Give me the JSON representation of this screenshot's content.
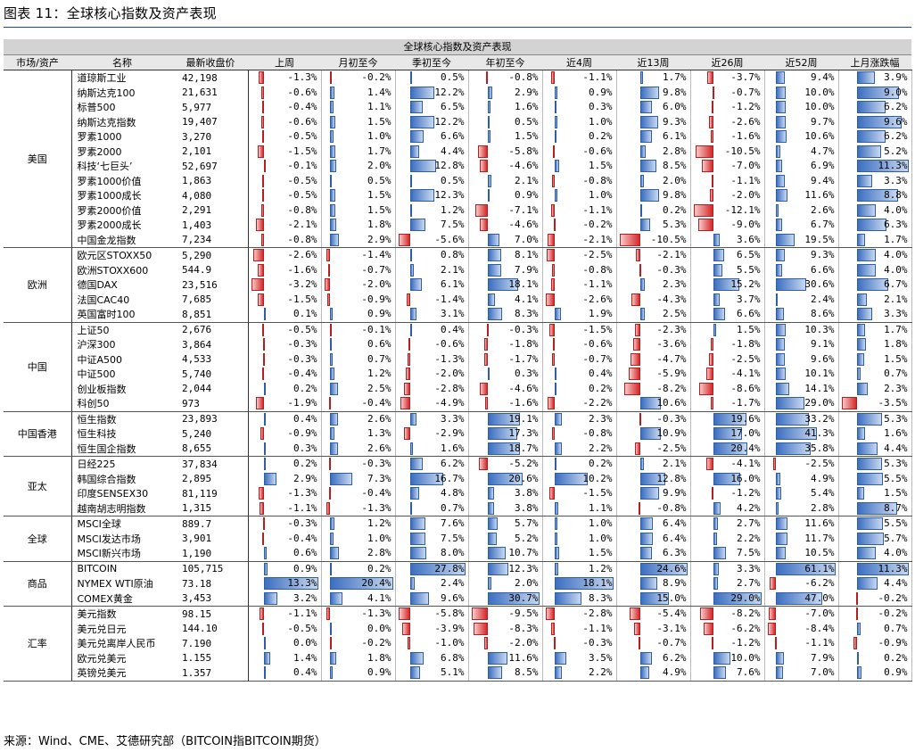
{
  "figure_title": "图表 11：全球核心指数及资产表现",
  "table_title": "全球核心指数及资产表现",
  "columns": [
    "市场/资产",
    "名称",
    "最新收盘价",
    "上周",
    "月初至今",
    "季初至今",
    "年初至今",
    "近4周",
    "近13周",
    "近26周",
    "近52周",
    "上月涨跌幅"
  ],
  "groups": [
    {
      "market": "美国",
      "rows": [
        {
          "name": "道琼斯工业",
          "price": "42,198",
          "values": [
            -1.3,
            -0.2,
            0.5,
            -0.8,
            -1.1,
            1.7,
            -3.7,
            9.4,
            3.9
          ]
        },
        {
          "name": "纳斯达克100",
          "price": "21,631",
          "values": [
            -0.6,
            1.4,
            12.2,
            2.9,
            0.9,
            9.8,
            -0.7,
            10.0,
            9.0
          ]
        },
        {
          "name": "标普500",
          "price": "5,977",
          "values": [
            -0.4,
            1.1,
            6.5,
            1.6,
            0.3,
            6.0,
            -1.2,
            10.0,
            6.2
          ]
        },
        {
          "name": "纳斯达克指数",
          "price": "19,407",
          "values": [
            -0.6,
            1.5,
            12.2,
            0.5,
            1.0,
            9.3,
            -2.6,
            9.7,
            9.6
          ]
        },
        {
          "name": "罗素1000",
          "price": "3,270",
          "values": [
            -0.5,
            1.0,
            6.6,
            1.5,
            0.2,
            6.1,
            -1.6,
            10.6,
            6.2
          ]
        },
        {
          "name": "罗素2000",
          "price": "2,101",
          "values": [
            -1.5,
            1.7,
            4.4,
            -5.8,
            -0.6,
            2.8,
            -10.5,
            4.7,
            5.2
          ]
        },
        {
          "name": "科技‘七巨头’",
          "price": "52,697",
          "values": [
            -0.1,
            2.0,
            12.8,
            -4.6,
            1.5,
            8.5,
            -7.0,
            6.9,
            11.3
          ]
        },
        {
          "name": "罗素1000价值",
          "price": "1,863",
          "values": [
            -0.5,
            0.5,
            0.5,
            2.1,
            -0.8,
            2.0,
            -1.1,
            9.4,
            3.3
          ]
        },
        {
          "name": "罗素1000成长",
          "price": "4,080",
          "values": [
            -0.5,
            1.5,
            12.3,
            0.9,
            1.0,
            9.8,
            -2.0,
            11.6,
            8.8
          ]
        },
        {
          "name": "罗素2000价值",
          "price": "2,291",
          "values": [
            -0.8,
            1.5,
            1.2,
            -7.1,
            -1.1,
            0.2,
            -12.1,
            2.6,
            4.0
          ]
        },
        {
          "name": "罗素2000成长",
          "price": "1,403",
          "values": [
            -2.1,
            1.8,
            7.5,
            -4.6,
            -0.2,
            5.3,
            -9.0,
            6.7,
            6.3
          ]
        },
        {
          "name": "中国金龙指数",
          "price": "7,234",
          "values": [
            -0.8,
            2.9,
            -5.6,
            7.0,
            -2.1,
            -10.5,
            3.6,
            19.5,
            1.7
          ]
        }
      ]
    },
    {
      "market": "欧洲",
      "rows": [
        {
          "name": "欧元区STOXX50",
          "price": "5,290",
          "values": [
            -2.6,
            -1.4,
            0.8,
            8.1,
            -2.5,
            -2.1,
            6.5,
            9.3,
            4.0
          ]
        },
        {
          "name": "欧洲STOXX600",
          "price": "544.9",
          "values": [
            -1.6,
            -0.7,
            2.1,
            7.9,
            -0.8,
            -0.3,
            5.5,
            6.6,
            4.0
          ]
        },
        {
          "name": "德国DAX",
          "price": "23,516",
          "values": [
            -3.2,
            -2.0,
            6.1,
            18.1,
            -1.1,
            2.3,
            15.2,
            30.6,
            6.7
          ]
        },
        {
          "name": "法国CAC40",
          "price": "7,685",
          "values": [
            -1.5,
            -0.9,
            -1.4,
            4.1,
            -2.6,
            -4.3,
            3.7,
            2.4,
            2.1
          ]
        },
        {
          "name": "英国富时100",
          "price": "8,851",
          "values": [
            0.1,
            0.9,
            3.1,
            8.3,
            1.9,
            2.5,
            6.6,
            8.6,
            3.3
          ]
        }
      ]
    },
    {
      "market": "中国",
      "rows": [
        {
          "name": "上证50",
          "price": "2,676",
          "values": [
            -0.5,
            -0.1,
            0.4,
            -0.3,
            -1.5,
            -2.3,
            1.5,
            10.3,
            1.7
          ]
        },
        {
          "name": "沪深300",
          "price": "3,864",
          "values": [
            -0.3,
            0.6,
            -0.6,
            -1.8,
            -0.6,
            -3.6,
            -1.8,
            9.1,
            1.8
          ]
        },
        {
          "name": "中证A500",
          "price": "4,533",
          "values": [
            -0.3,
            0.7,
            -1.3,
            -1.7,
            -0.7,
            -4.7,
            -2.5,
            9.6,
            1.5
          ]
        },
        {
          "name": "中证500",
          "price": "5,740",
          "values": [
            -0.4,
            1.2,
            -2.0,
            0.3,
            0.4,
            -5.9,
            -4.1,
            10.1,
            0.7
          ]
        },
        {
          "name": "创业板指数",
          "price": "2,044",
          "values": [
            0.2,
            2.5,
            -2.8,
            -4.6,
            0.2,
            -8.2,
            -8.6,
            14.1,
            2.3
          ]
        },
        {
          "name": "科创50",
          "price": "973",
          "values": [
            -1.9,
            -0.4,
            -4.9,
            -1.6,
            -2.2,
            10.6,
            -1.7,
            29.0,
            -3.5
          ]
        }
      ]
    },
    {
      "market": "中国香港",
      "rows": [
        {
          "name": "恒生指数",
          "price": "23,893",
          "values": [
            0.4,
            2.6,
            3.3,
            19.1,
            2.3,
            -0.3,
            19.6,
            33.2,
            5.3
          ]
        },
        {
          "name": "恒生科技",
          "price": "5,240",
          "values": [
            -0.9,
            1.3,
            -2.9,
            17.3,
            -0.8,
            10.9,
            17.0,
            41.3,
            1.6
          ]
        },
        {
          "name": "恒生国企指数",
          "price": "8,655",
          "values": [
            0.3,
            2.6,
            1.6,
            18.7,
            2.2,
            -2.5,
            20.4,
            35.8,
            4.4
          ]
        }
      ]
    },
    {
      "market": "亚太",
      "rows": [
        {
          "name": "日经225",
          "price": "37,834",
          "values": [
            0.2,
            -0.3,
            6.2,
            -5.2,
            0.2,
            2.1,
            -4.1,
            -2.5,
            5.3
          ]
        },
        {
          "name": "韩国综合指数",
          "price": "2,895",
          "values": [
            2.9,
            7.3,
            16.7,
            20.6,
            10.2,
            12.8,
            16.0,
            4.9,
            5.5
          ]
        },
        {
          "name": "印度SENSEX30",
          "price": "81,119",
          "values": [
            -1.3,
            -0.4,
            4.8,
            3.8,
            -1.5,
            9.9,
            -1.2,
            5.4,
            1.5
          ]
        },
        {
          "name": "越南胡志明指数",
          "price": "1,315",
          "values": [
            -1.1,
            -1.3,
            0.7,
            3.8,
            1.1,
            -0.8,
            4.2,
            2.8,
            8.7
          ]
        }
      ]
    },
    {
      "market": "全球",
      "rows": [
        {
          "name": "MSCI全球",
          "price": "889.7",
          "values": [
            -0.3,
            1.2,
            7.6,
            5.7,
            1.0,
            6.4,
            2.7,
            11.6,
            5.5
          ]
        },
        {
          "name": "MSCI发达市场",
          "price": "3,901",
          "values": [
            -0.4,
            1.0,
            7.5,
            5.2,
            1.0,
            6.4,
            2.2,
            11.7,
            5.7
          ]
        },
        {
          "name": "MSCI新兴市场",
          "price": "1,190",
          "values": [
            0.6,
            2.8,
            8.0,
            10.7,
            1.5,
            6.3,
            7.5,
            10.5,
            4.0
          ]
        }
      ]
    },
    {
      "market": "商品",
      "rows": [
        {
          "name": "BITCOIN",
          "price": "105,715",
          "values": [
            0.9,
            0.2,
            27.8,
            12.3,
            1.2,
            24.6,
            3.3,
            61.1,
            11.3
          ]
        },
        {
          "name": "NYMEX WTI原油",
          "price": "73.18",
          "values": [
            13.3,
            20.4,
            2.4,
            2.0,
            18.1,
            8.9,
            2.7,
            -6.2,
            4.4
          ]
        },
        {
          "name": "COMEX黄金",
          "price": "3,453",
          "values": [
            3.2,
            4.1,
            9.6,
            30.7,
            8.3,
            15.0,
            29.0,
            47.0,
            -0.2
          ]
        }
      ]
    },
    {
      "market": "汇率",
      "rows": [
        {
          "name": "美元指数",
          "price": "98.15",
          "values": [
            -1.1,
            -1.3,
            -5.8,
            -9.5,
            -2.8,
            -5.4,
            -8.2,
            -7.0,
            -0.2
          ]
        },
        {
          "name": "美元兑日元",
          "price": "144.10",
          "values": [
            -0.5,
            0.0,
            -3.9,
            -8.3,
            -1.1,
            -3.1,
            -6.2,
            -8.4,
            0.7
          ]
        },
        {
          "name": "美元兑离岸人民币",
          "price": "7.190",
          "values": [
            0.0,
            -0.2,
            -1.0,
            -2.0,
            -0.3,
            -0.7,
            -1.2,
            -1.1,
            -0.9
          ]
        },
        {
          "name": "欧元兑美元",
          "price": "1.155",
          "values": [
            1.4,
            1.8,
            6.8,
            11.6,
            3.5,
            6.2,
            10.0,
            7.9,
            0.2
          ]
        },
        {
          "name": "英镑兑美元",
          "price": "1.357",
          "values": [
            0.4,
            0.9,
            5.1,
            8.5,
            2.2,
            4.9,
            7.6,
            7.0,
            0.9
          ]
        }
      ]
    }
  ],
  "source": "来源：Wind、CME、艾德研究部（BITCOIN指BITCOIN期货）",
  "colors": {
    "positive": "#3c6fc1",
    "negative": "#d62728"
  }
}
